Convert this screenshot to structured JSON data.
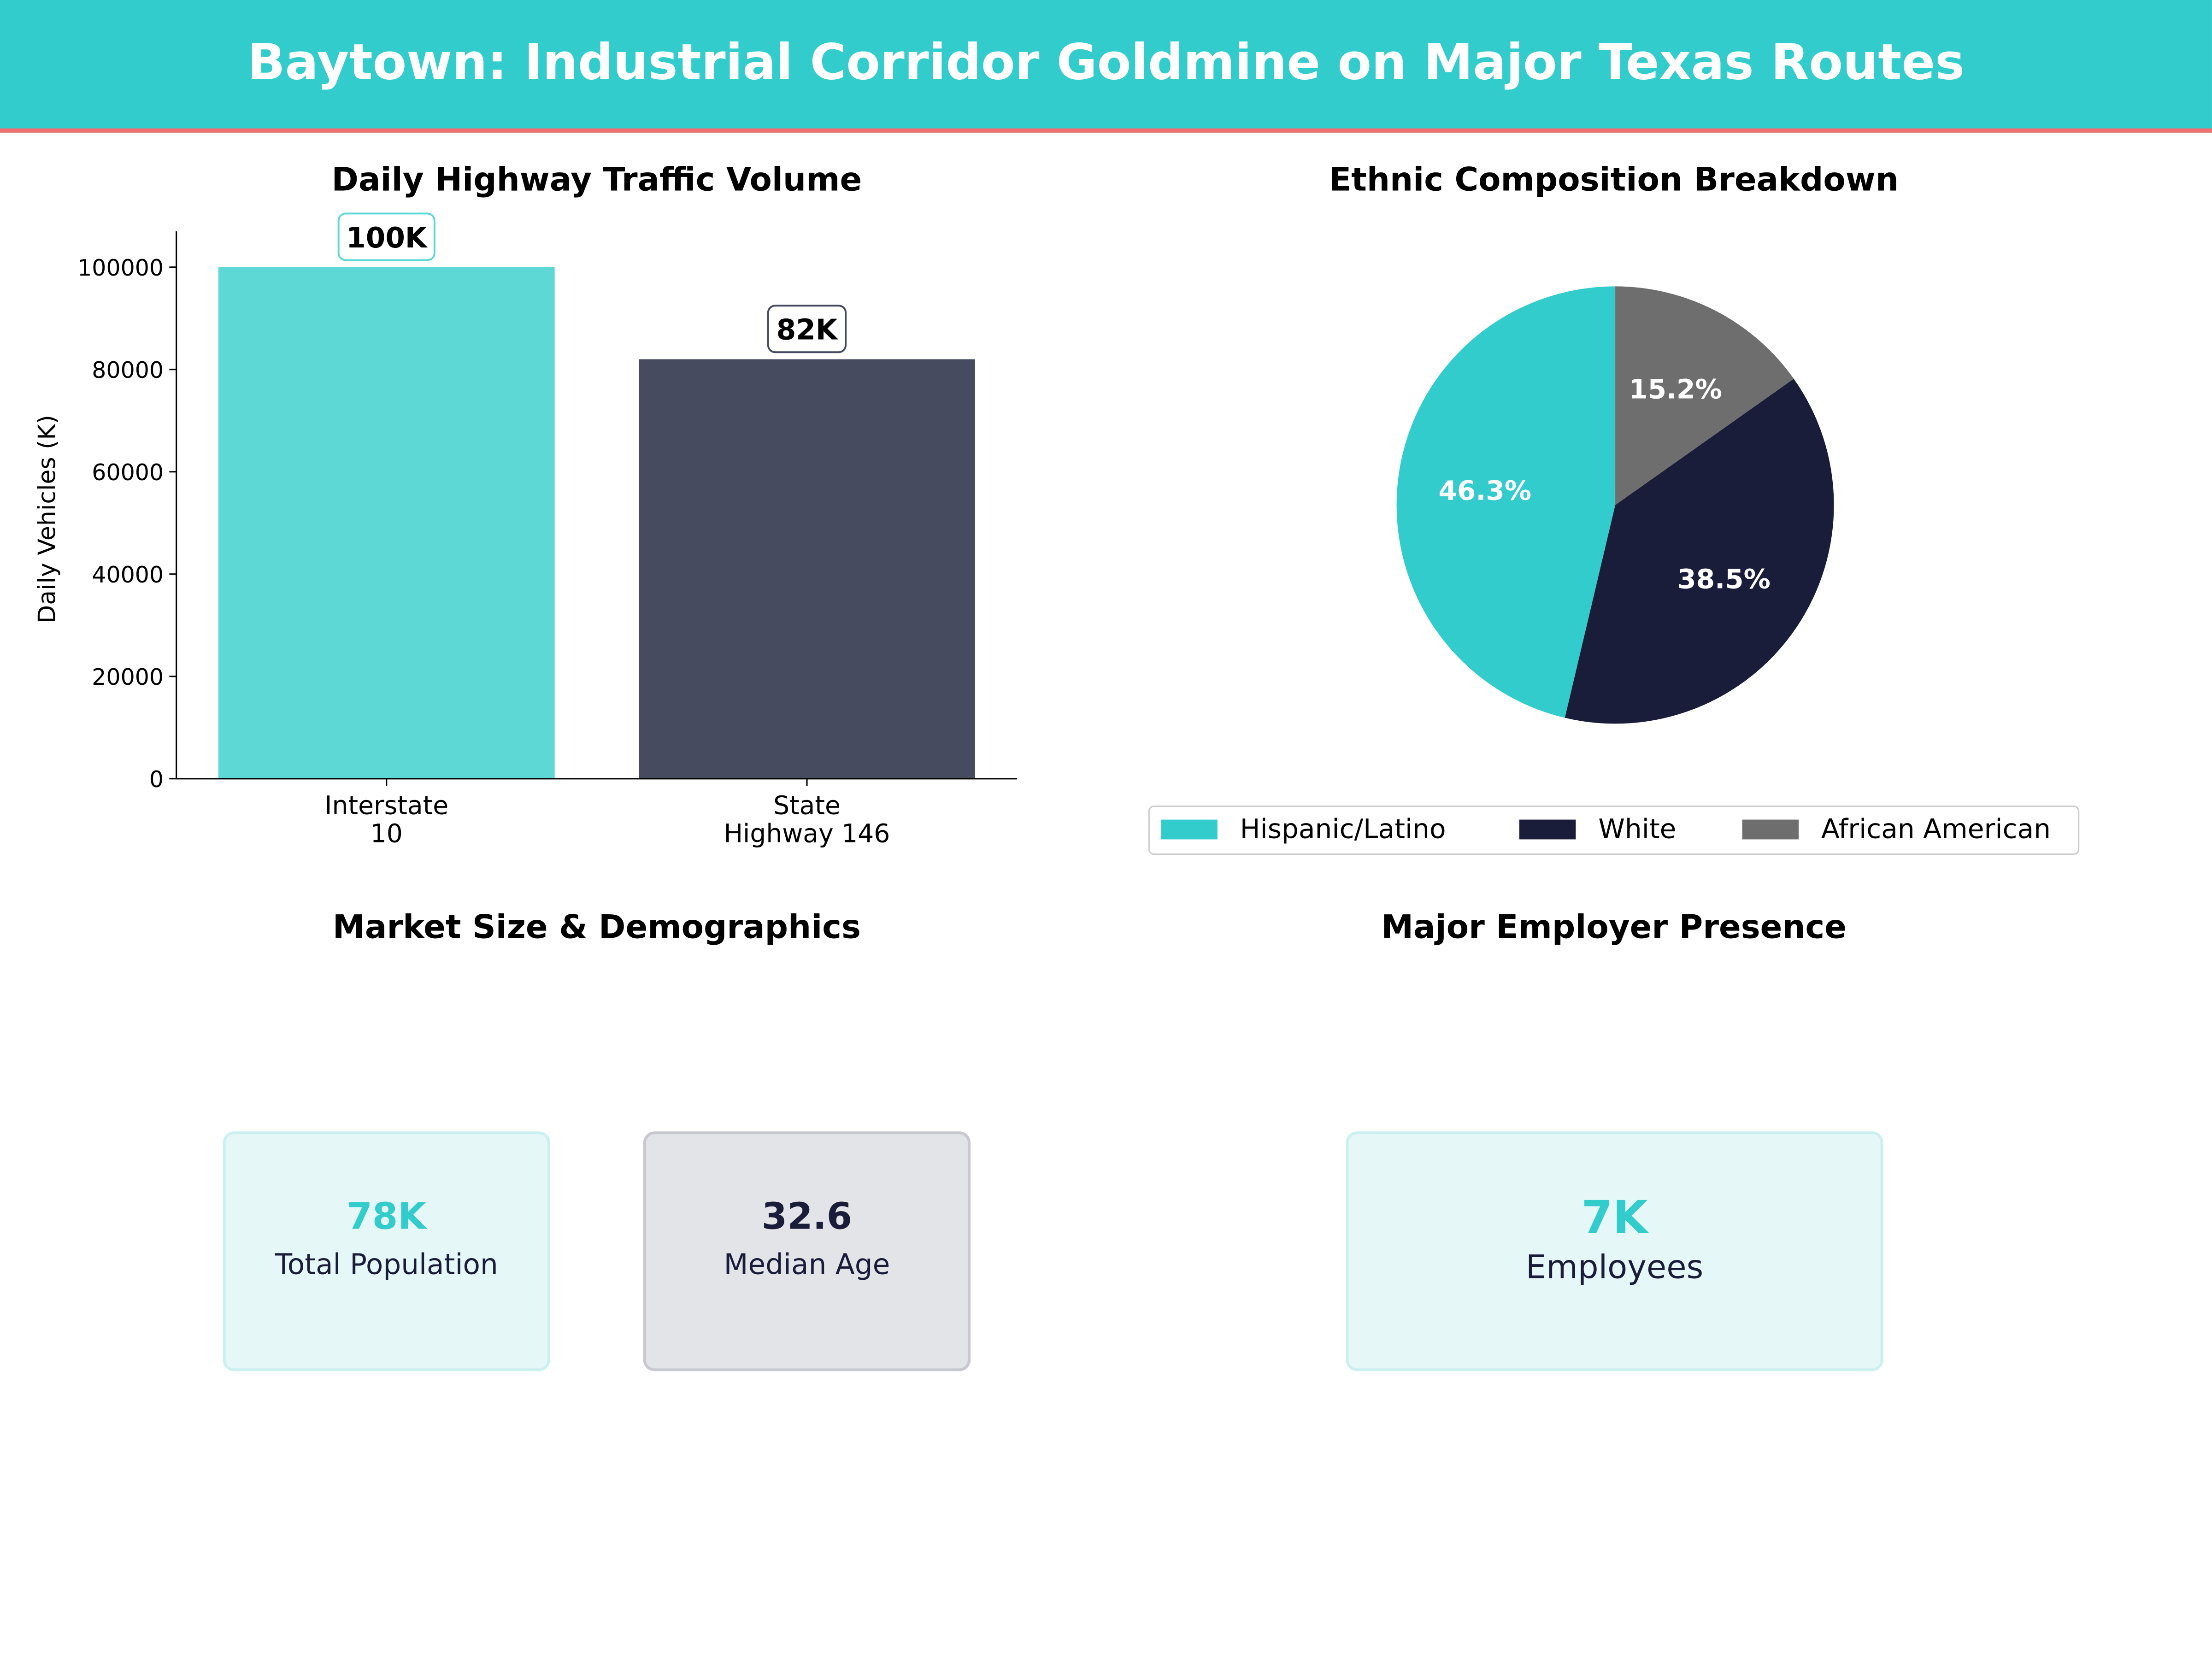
{
  "header": {
    "title": "Baytown: Industrial Corridor Goldmine on Major Texas Routes",
    "color": "#33CCCC",
    "accent_line": "#F07070"
  },
  "chart_data": [
    {
      "type": "bar",
      "title": "Daily Highway Traffic Volume",
      "xlabel": "",
      "ylabel": "Daily Vehicles (K)",
      "categories": [
        "Interstate\n10",
        "State\nHighway 146"
      ],
      "category_lines": [
        [
          "Interstate",
          "10"
        ],
        [
          "State",
          "Highway 146"
        ]
      ],
      "values": [
        100000,
        82000
      ],
      "data_labels": [
        "100K",
        "82K"
      ],
      "colors": [
        "#5DD8D5",
        "#464B60"
      ],
      "yticks": [
        0,
        20000,
        40000,
        60000,
        80000,
        100000
      ],
      "ytick_labels": [
        "0",
        "20000",
        "40000",
        "60000",
        "80000",
        "100000"
      ],
      "ylim": [
        0,
        107000
      ],
      "grid": false
    },
    {
      "type": "pie",
      "title": "Ethnic Composition Breakdown",
      "labels": [
        "Hispanic/Latino",
        "White",
        "African American"
      ],
      "values": [
        46.3,
        38.5,
        15.2
      ],
      "data_labels": [
        "46.3%",
        "38.5%",
        "15.2%"
      ],
      "colors": [
        "#33CCCC",
        "#1A1D3A",
        "#6E6E6E"
      ],
      "start_angle": 90,
      "direction": "counterclockwise",
      "legend": "bottom"
    }
  ],
  "market": {
    "title": "Market Size & Demographics",
    "cards": [
      {
        "value": "78K",
        "label": "Total Population",
        "value_color": "#33CCCC"
      },
      {
        "value": "32.6",
        "label": "Median Age",
        "value_color": "#1A1D3A"
      }
    ]
  },
  "employer": {
    "title": "Major Employer Presence",
    "card": {
      "value": "7K",
      "label": "Employees",
      "value_color": "#33CCCC"
    }
  }
}
